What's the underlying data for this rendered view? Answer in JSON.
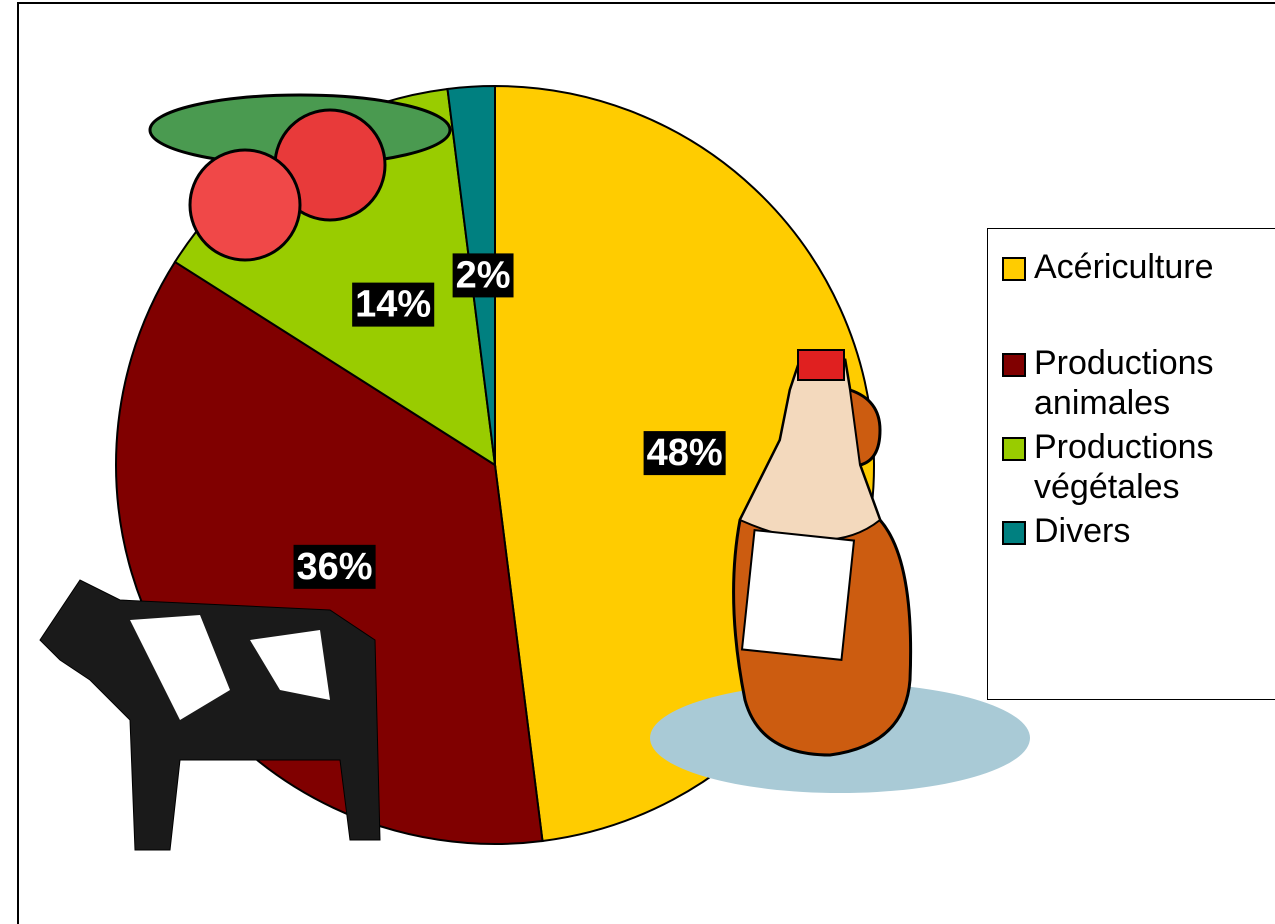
{
  "chart_data": {
    "type": "pie",
    "categories": [
      "Acériculture",
      "Productions animales",
      "Productions végétales",
      "Divers"
    ],
    "values": [
      48,
      36,
      14,
      2
    ],
    "value_labels": [
      "48%",
      "36%",
      "14%",
      "2%"
    ],
    "colors": [
      "#ffcc00",
      "#800000",
      "#99cc00",
      "#008080"
    ],
    "legend": "right"
  }
}
